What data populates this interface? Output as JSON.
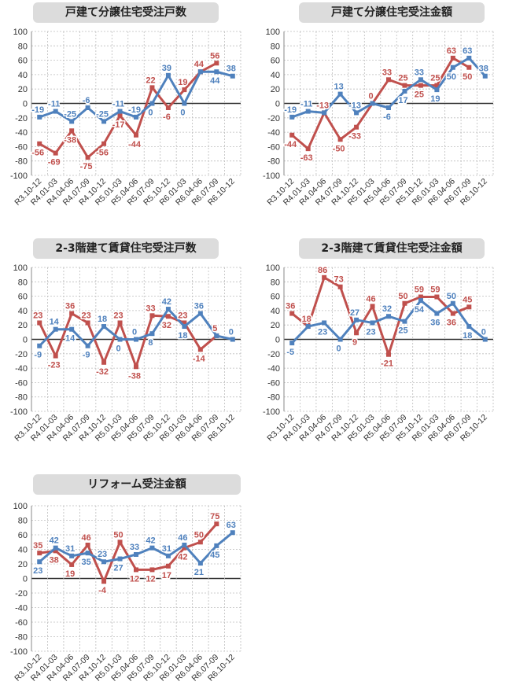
{
  "colors": {
    "blue": "#4f81bd",
    "red": "#c0504d",
    "grid": "#bdbdbd",
    "zero": "#333333"
  },
  "chart_data": [
    {
      "type": "line",
      "title": "戸建て分譲住宅受注戸数",
      "categories": [
        "R3.10-12",
        "R4.01-03",
        "R4.04-06",
        "R4.07-09",
        "R4.10-12",
        "R5.01-03",
        "R5.04-06",
        "R5.07-09",
        "R5.10-12",
        "R6.01-03",
        "R6.04-06",
        "R6.07-09",
        "R6.10-12"
      ],
      "ylim": [
        -100,
        100
      ],
      "yticks": [
        100,
        80,
        60,
        40,
        20,
        0,
        -20,
        -40,
        -60,
        -80,
        -100
      ],
      "grid": true,
      "series": [
        {
          "color": "blue",
          "values": [
            -19,
            -11,
            -25,
            -6,
            -25,
            -11,
            -19,
            0,
            39,
            0,
            44,
            44,
            38
          ]
        },
        {
          "color": "red",
          "values": [
            -56,
            -69,
            -38,
            -75,
            -56,
            -17,
            -44,
            22,
            -6,
            19,
            44,
            56,
            null
          ]
        }
      ]
    },
    {
      "type": "line",
      "title": "戸建て分譲住宅受注金額",
      "categories": [
        "R3.10-12",
        "R4.01-03",
        "R4.04-06",
        "R4.07-09",
        "R4.10-12",
        "R5.01-03",
        "R5.04-06",
        "R5.07-09",
        "R5.10-12",
        "R6.01-03",
        "R6.04-06",
        "R6.07-09",
        "R6.10-12"
      ],
      "ylim": [
        -100,
        100
      ],
      "yticks": [
        100,
        80,
        60,
        40,
        20,
        0,
        -20,
        -40,
        -60,
        -80,
        -100
      ],
      "grid": true,
      "series": [
        {
          "color": "blue",
          "values": [
            -19,
            -11,
            -13,
            13,
            -13,
            0,
            -6,
            17,
            33,
            19,
            50,
            63,
            38
          ]
        },
        {
          "color": "red",
          "values": [
            -44,
            -63,
            -13,
            -50,
            -33,
            0,
            33,
            25,
            25,
            25,
            63,
            50,
            null
          ]
        }
      ]
    },
    {
      "type": "line",
      "title": "2-3階建て賃貸住宅受注戸数",
      "categories": [
        "R3.10-12",
        "R4.01-03",
        "R4.04-06",
        "R4.07-09",
        "R4.10-12",
        "R5.01-03",
        "R5.04-06",
        "R5.07-09",
        "R5.10-12",
        "R6.01-03",
        "R6.04-06",
        "R6.07-09",
        "R6.10-12"
      ],
      "ylim": [
        -100,
        100
      ],
      "yticks": [
        100,
        80,
        60,
        40,
        20,
        0,
        -20,
        -40,
        -60,
        -80,
        -100
      ],
      "grid": true,
      "series": [
        {
          "color": "blue",
          "values": [
            -9,
            14,
            14,
            -9,
            18,
            0,
            0,
            8,
            42,
            18,
            36,
            5,
            0
          ]
        },
        {
          "color": "red",
          "values": [
            23,
            -23,
            36,
            23,
            -32,
            23,
            -38,
            33,
            32,
            23,
            -14,
            5,
            null
          ]
        }
      ]
    },
    {
      "type": "line",
      "title": "2-3階建て賃貸住宅受注金額",
      "categories": [
        "R3.10-12",
        "R4.01-03",
        "R4.04-06",
        "R4.07-09",
        "R4.10-12",
        "R5.01-03",
        "R5.04-06",
        "R5.07-09",
        "R5.10-12",
        "R6.01-03",
        "R6.04-06",
        "R6.07-09",
        "R6.10-12"
      ],
      "ylim": [
        -100,
        100
      ],
      "yticks": [
        100,
        80,
        60,
        40,
        20,
        0,
        -20,
        -40,
        -60,
        -80,
        -100
      ],
      "grid": true,
      "series": [
        {
          "color": "blue",
          "values": [
            -5,
            18,
            23,
            0,
            27,
            23,
            32,
            25,
            54,
            36,
            50,
            18,
            0
          ]
        },
        {
          "color": "red",
          "values": [
            36,
            18,
            86,
            73,
            9,
            46,
            -21,
            50,
            59,
            59,
            36,
            45,
            null
          ]
        }
      ]
    },
    {
      "type": "line",
      "title": "リフォーム受注金額",
      "categories": [
        "R3.10-12",
        "R4.01-03",
        "R4.04-06",
        "R4.07-09",
        "R4.10-12",
        "R5.01-03",
        "R5.04-06",
        "R5.07-09",
        "R5.10-12",
        "R6.01-03",
        "R6.04-06",
        "R6.07-09",
        "R6.10-12"
      ],
      "ylim": [
        -100,
        100
      ],
      "yticks": [
        100,
        80,
        60,
        40,
        20,
        0,
        -20,
        -40,
        -60,
        -80,
        -100
      ],
      "grid": true,
      "series": [
        {
          "color": "blue",
          "values": [
            23,
            42,
            31,
            35,
            23,
            27,
            33,
            42,
            31,
            46,
            21,
            45,
            63
          ]
        },
        {
          "color": "red",
          "values": [
            35,
            38,
            19,
            46,
            -4,
            50,
            12,
            12,
            17,
            42,
            50,
            75,
            null
          ]
        }
      ]
    }
  ]
}
